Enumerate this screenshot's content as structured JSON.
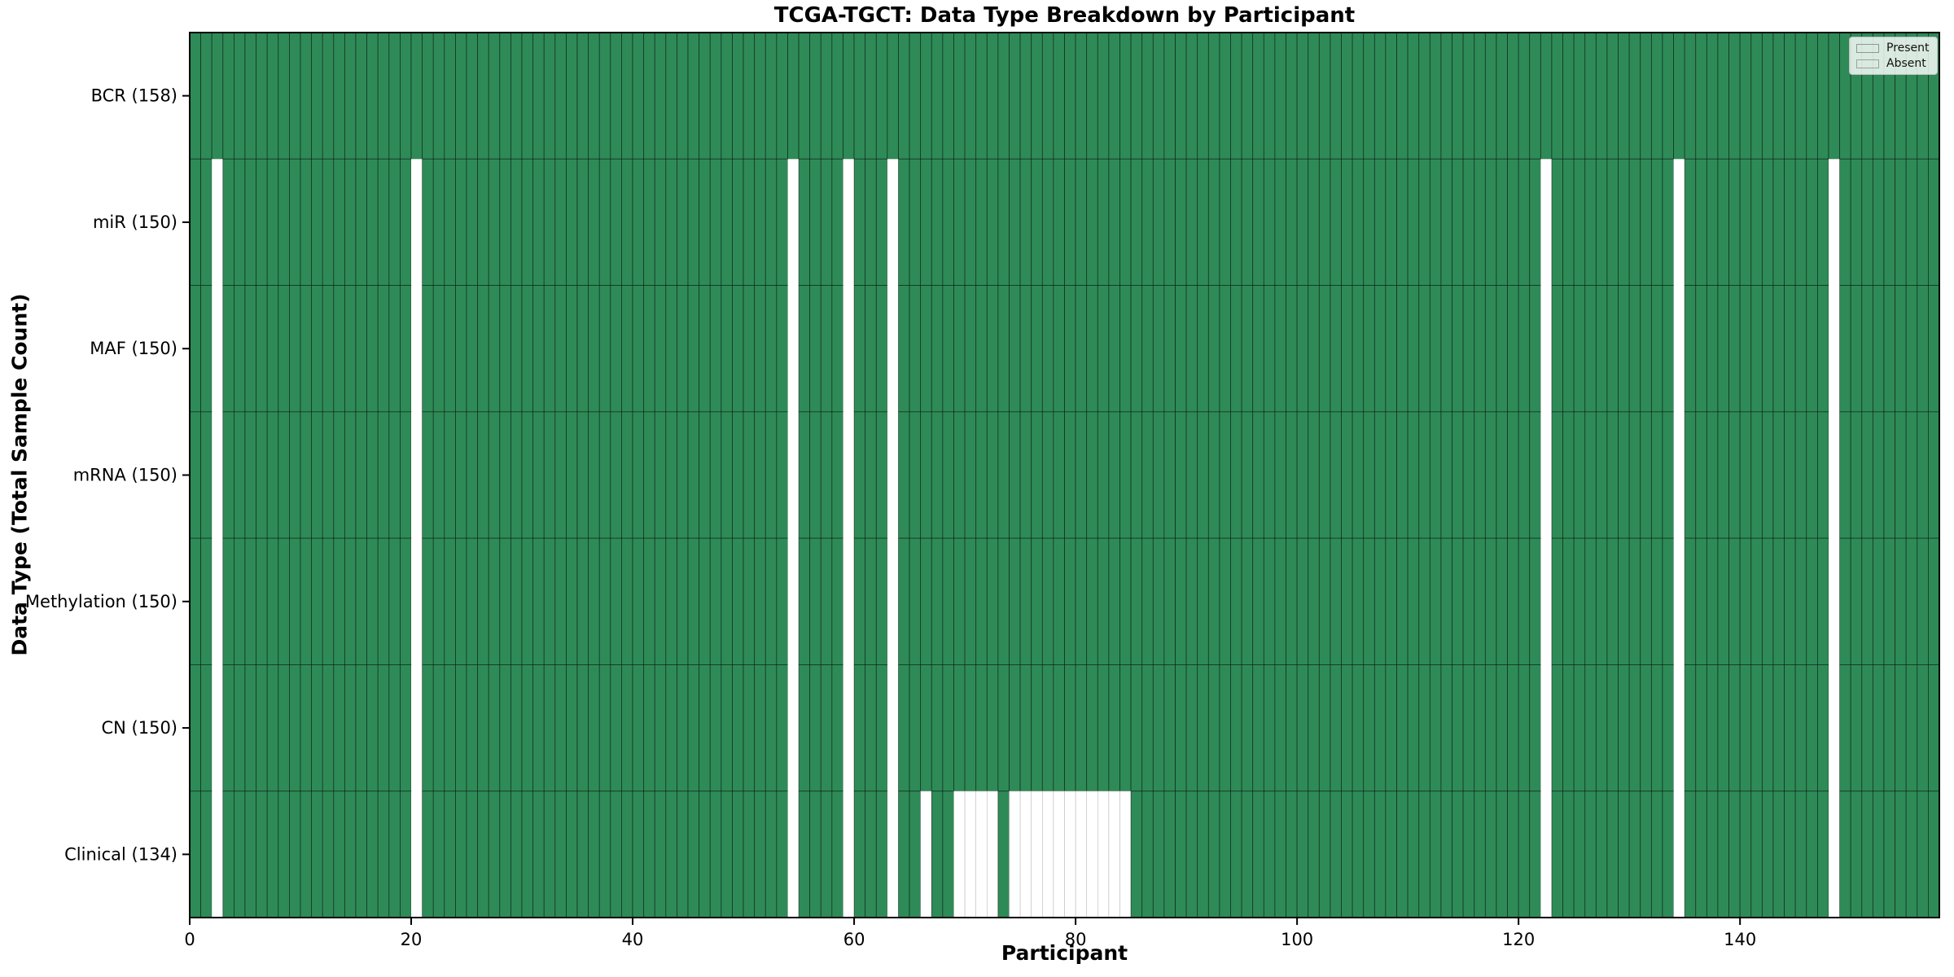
{
  "title": "TCGA-TGCT: Data Type Breakdown by Participant",
  "colors": {
    "present": "#2e8b57",
    "absent": "#ffffff",
    "cell_edge": "rgba(0,0,0,0.55)",
    "absent_cell_edge": "#b0b0b0",
    "frame": "#000000"
  },
  "chart_data": {
    "type": "heatmap",
    "title": "TCGA-TGCT: Data Type Breakdown by Participant",
    "xlabel": "Participant",
    "ylabel": "Data Type (Total Sample Count)",
    "n_participants": 158,
    "xlim": [
      0,
      158
    ],
    "x_ticks": [
      0,
      20,
      40,
      60,
      80,
      100,
      120,
      140
    ],
    "grid": false,
    "legend_position": "upper right",
    "legend": [
      {
        "label": "Present",
        "color": "#2e8b57"
      },
      {
        "label": "Absent",
        "color": "#ffffff"
      }
    ],
    "rows": [
      {
        "label": "BCR (158)",
        "data_type": "BCR",
        "total": 158,
        "absent_participants": []
      },
      {
        "label": "miR (150)",
        "data_type": "miR",
        "total": 150,
        "absent_participants": [
          2,
          20,
          54,
          59,
          63,
          122,
          134,
          148
        ]
      },
      {
        "label": "MAF (150)",
        "data_type": "MAF",
        "total": 150,
        "absent_participants": [
          2,
          20,
          54,
          59,
          63,
          122,
          134,
          148
        ]
      },
      {
        "label": "mRNA (150)",
        "data_type": "mRNA",
        "total": 150,
        "absent_participants": [
          2,
          20,
          54,
          59,
          63,
          122,
          134,
          148
        ]
      },
      {
        "label": "Methylation (150)",
        "data_type": "Methylation",
        "total": 150,
        "absent_participants": [
          2,
          20,
          54,
          59,
          63,
          122,
          134,
          148
        ]
      },
      {
        "label": "CN (150)",
        "data_type": "CN",
        "total": 150,
        "absent_participants": [
          2,
          20,
          54,
          59,
          63,
          122,
          134,
          148
        ]
      },
      {
        "label": "Clinical (134)",
        "data_type": "Clinical",
        "total": 134,
        "absent_participants": [
          2,
          20,
          54,
          59,
          63,
          66,
          69,
          70,
          71,
          72,
          74,
          75,
          76,
          77,
          78,
          79,
          80,
          81,
          82,
          83,
          84,
          122,
          134,
          148
        ]
      }
    ]
  }
}
